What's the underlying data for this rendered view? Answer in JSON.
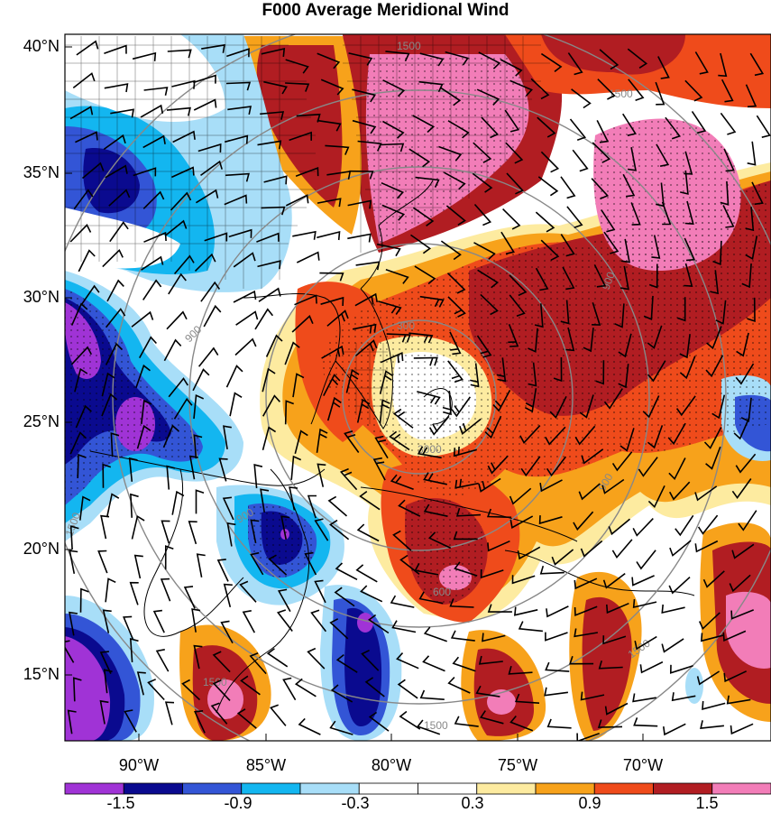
{
  "title": "F000 Average Meridional Wind",
  "map": {
    "lat_labels": [
      "40°N",
      "35°N",
      "30°N",
      "25°N",
      "20°N",
      "15°N"
    ],
    "lon_labels": [
      "90°W",
      "85°W",
      "80°W",
      "75°W",
      "70°W"
    ],
    "range_ring_labels": [
      "300",
      "600",
      "900",
      "1500"
    ],
    "center_label": "3000"
  },
  "colorbar": {
    "labels": [
      "-1.5",
      "-0.9",
      "-0.3",
      "0.3",
      "0.9",
      "1.5"
    ],
    "colors": [
      "#a033d6",
      "#0a0a8f",
      "#3355d6",
      "#13b6f0",
      "#a8def8",
      "#ffffff",
      "#ffffff",
      "#fdeba0",
      "#f7a21b",
      "#ef4b1b",
      "#b11d22",
      "#f27db8"
    ]
  }
}
